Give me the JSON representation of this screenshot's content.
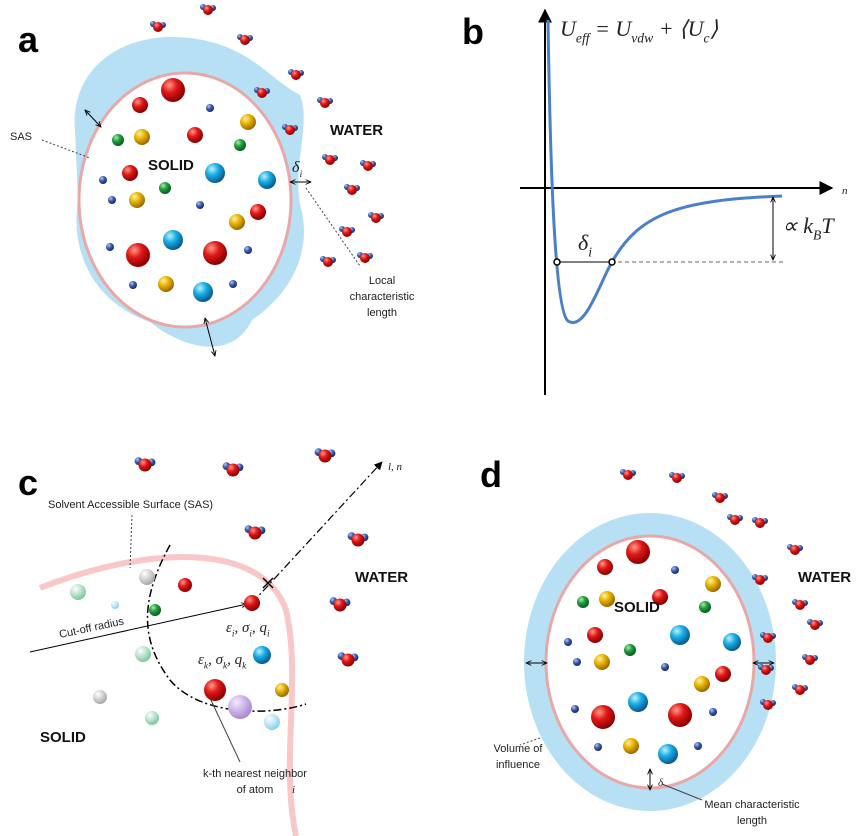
{
  "panel_a": {
    "label": "a",
    "sas": "SAS",
    "solid": "SOLID",
    "water": "WATER",
    "delta": [
      {
        "base": "δ",
        "sub": "i"
      }
    ],
    "local_length": [
      "Local",
      "characteristic",
      "length"
    ]
  },
  "panel_b": {
    "label": "b",
    "formula": [
      {
        "base": "U",
        "sub": "eff"
      },
      {
        "base": " = U",
        "sub": "vdw"
      },
      {
        "base": " + ⟨U",
        "sub": "c"
      },
      {
        "base": "⟩"
      }
    ],
    "axis": "n",
    "energy": [
      {
        "base": "∝ k",
        "sub": "B"
      },
      {
        "base": "T"
      }
    ],
    "delta": [
      {
        "base": "δ",
        "sub": "i"
      }
    ]
  },
  "panel_c": {
    "label": "c",
    "direction": "l, n",
    "sas": "Solvent Accessible Surface (SAS)",
    "cutoff": "Cut-off radius",
    "params_i": [
      {
        "base": "ε",
        "sub": "i"
      },
      {
        "base": ", σ",
        "sub": "i"
      },
      {
        "base": ", q",
        "sub": "i"
      }
    ],
    "params_k": [
      {
        "base": "ε",
        "sub": "k"
      },
      {
        "base": ", σ",
        "sub": "k"
      },
      {
        "base": ", q",
        "sub": "k"
      }
    ],
    "neighbor": [
      "k-th nearest neighbor",
      "of atom"
    ],
    "neighbor_atom": "i",
    "solid": "SOLID",
    "water": "WATER"
  },
  "panel_d": {
    "label": "d",
    "solid": "SOLID",
    "water": "WATER",
    "volume": [
      "Volume of",
      "influence"
    ],
    "delta": "δ",
    "mean_length": [
      "Mean characteristic",
      "length"
    ]
  }
}
